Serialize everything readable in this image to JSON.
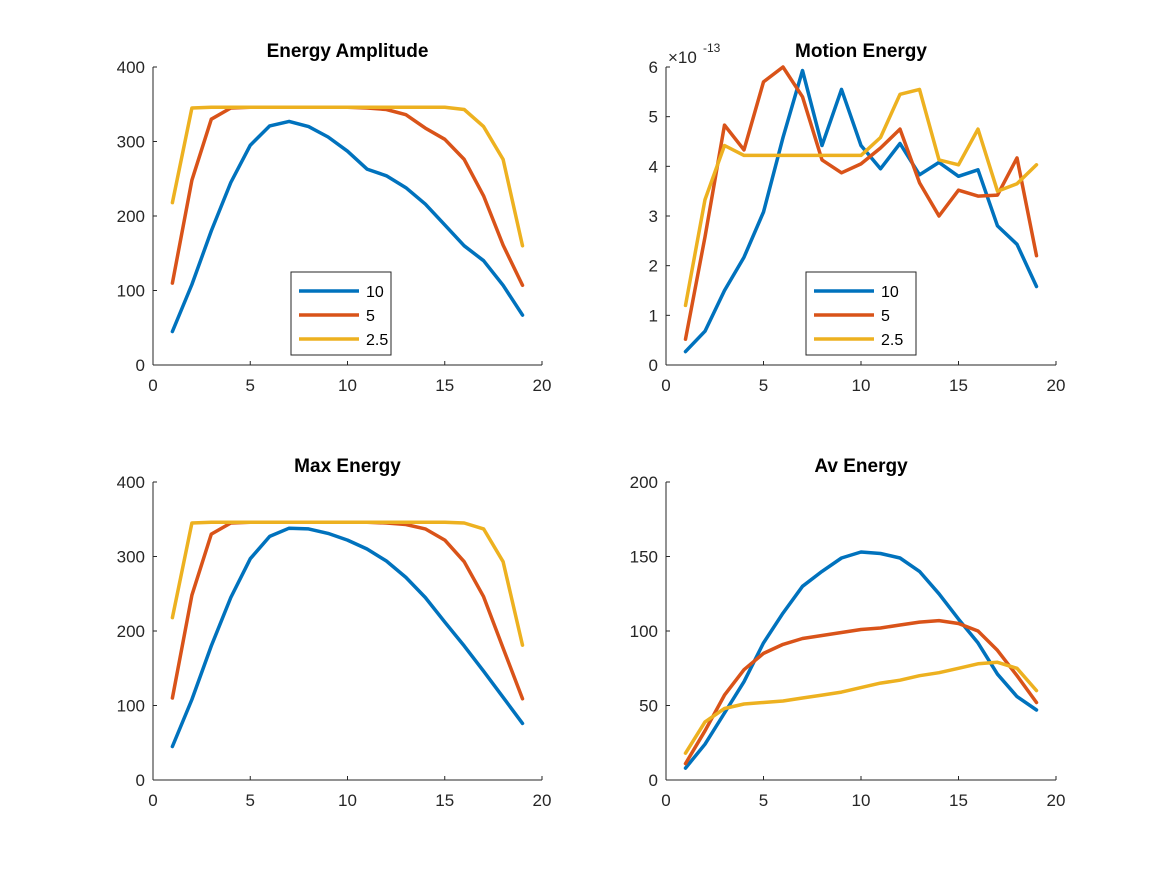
{
  "chart_data": [
    {
      "type": "line",
      "title": "Energy Amplitude",
      "xlim": [
        0,
        20
      ],
      "ylim": [
        0,
        400
      ],
      "xticks": [
        "0",
        "5",
        "10",
        "15",
        "20"
      ],
      "yticks": [
        "0",
        "100",
        "200",
        "300",
        "400"
      ],
      "legend": "inside-bottom-center",
      "series": [
        {
          "name": "10",
          "color": "#0072BD",
          "x": [
            1,
            2,
            3,
            4,
            5,
            6,
            7,
            8,
            9,
            10,
            11,
            12,
            13,
            14,
            15,
            16,
            17,
            18,
            19
          ],
          "values": [
            45,
            108,
            180,
            245,
            295,
            321,
            327,
            320,
            306,
            287,
            263,
            254,
            238,
            216,
            188,
            160,
            140,
            107,
            67
          ]
        },
        {
          "name": "5",
          "color": "#D95319",
          "x": [
            1,
            2,
            3,
            4,
            5,
            6,
            7,
            8,
            9,
            10,
            11,
            12,
            13,
            14,
            15,
            16,
            17,
            18,
            19
          ],
          "values": [
            110,
            248,
            330,
            345,
            346,
            346,
            346,
            346,
            346,
            346,
            345,
            343,
            336,
            318,
            303,
            276,
            227,
            161,
            107
          ]
        },
        {
          "name": "2.5",
          "color": "#EDB120",
          "x": [
            1,
            2,
            3,
            4,
            5,
            6,
            7,
            8,
            9,
            10,
            11,
            12,
            13,
            14,
            15,
            16,
            17,
            18,
            19
          ],
          "values": [
            218,
            345,
            346,
            346,
            346,
            346,
            346,
            346,
            346,
            346,
            346,
            346,
            346,
            346,
            346,
            343,
            320,
            276,
            160
          ]
        }
      ]
    },
    {
      "type": "line",
      "title": "Motion Energy",
      "xlim": [
        0,
        20
      ],
      "ylim": [
        0,
        6
      ],
      "xticks": [
        "0",
        "5",
        "10",
        "15",
        "20"
      ],
      "yticks": [
        "0",
        "1",
        "2",
        "3",
        "4",
        "5",
        "6"
      ],
      "exponent_base": "×10",
      "exponent_power": "-13",
      "legend": "inside-bottom-center",
      "series": [
        {
          "name": "10",
          "color": "#0072BD",
          "x": [
            1,
            2,
            3,
            4,
            5,
            6,
            7,
            8,
            9,
            10,
            11,
            12,
            13,
            14,
            15,
            16,
            17,
            18,
            19
          ],
          "values": [
            0.27,
            0.68,
            1.5,
            2.17,
            3.08,
            4.58,
            5.93,
            4.42,
            5.55,
            4.42,
            3.95,
            4.46,
            3.83,
            4.08,
            3.8,
            3.93,
            2.8,
            2.43,
            1.58
          ]
        },
        {
          "name": "5",
          "color": "#D95319",
          "x": [
            1,
            2,
            3,
            4,
            5,
            6,
            7,
            8,
            9,
            10,
            11,
            12,
            13,
            14,
            15,
            16,
            17,
            18,
            19
          ],
          "values": [
            0.52,
            2.58,
            4.83,
            4.33,
            5.7,
            6.0,
            5.4,
            4.13,
            3.87,
            4.05,
            4.37,
            4.75,
            3.67,
            3.0,
            3.52,
            3.4,
            3.42,
            4.17,
            2.2
          ]
        },
        {
          "name": "2.5",
          "color": "#EDB120",
          "x": [
            1,
            2,
            3,
            4,
            5,
            6,
            7,
            8,
            9,
            10,
            11,
            12,
            13,
            14,
            15,
            16,
            17,
            18,
            19
          ],
          "values": [
            1.2,
            3.33,
            4.42,
            4.22,
            4.22,
            4.22,
            4.22,
            4.22,
            4.22,
            4.22,
            4.58,
            5.45,
            5.55,
            4.13,
            4.03,
            4.75,
            3.5,
            3.65,
            4.03
          ]
        }
      ]
    },
    {
      "type": "line",
      "title": "Max Energy",
      "xlim": [
        0,
        20
      ],
      "ylim": [
        0,
        400
      ],
      "xticks": [
        "0",
        "5",
        "10",
        "15",
        "20"
      ],
      "yticks": [
        "0",
        "100",
        "200",
        "300",
        "400"
      ],
      "series": [
        {
          "name": "10",
          "color": "#0072BD",
          "x": [
            1,
            2,
            3,
            4,
            5,
            6,
            7,
            8,
            9,
            10,
            11,
            12,
            13,
            14,
            15,
            16,
            17,
            18,
            19
          ],
          "values": [
            45,
            108,
            180,
            245,
            297,
            327,
            338,
            337,
            331,
            322,
            310,
            294,
            272,
            245,
            212,
            180,
            146,
            111,
            76
          ]
        },
        {
          "name": "5",
          "color": "#D95319",
          "x": [
            1,
            2,
            3,
            4,
            5,
            6,
            7,
            8,
            9,
            10,
            11,
            12,
            13,
            14,
            15,
            16,
            17,
            18,
            19
          ],
          "values": [
            110,
            248,
            330,
            345,
            346,
            346,
            346,
            346,
            346,
            346,
            346,
            345,
            343,
            337,
            322,
            293,
            246,
            177,
            109
          ]
        },
        {
          "name": "2.5",
          "color": "#EDB120",
          "x": [
            1,
            2,
            3,
            4,
            5,
            6,
            7,
            8,
            9,
            10,
            11,
            12,
            13,
            14,
            15,
            16,
            17,
            18,
            19
          ],
          "values": [
            218,
            345,
            346,
            346,
            346,
            346,
            346,
            346,
            346,
            346,
            346,
            346,
            346,
            346,
            346,
            345,
            337,
            293,
            181
          ]
        }
      ]
    },
    {
      "type": "line",
      "title": "Av Energy",
      "xlim": [
        0,
        20
      ],
      "ylim": [
        0,
        200
      ],
      "xticks": [
        "0",
        "5",
        "10",
        "15",
        "20"
      ],
      "yticks": [
        "0",
        "50",
        "100",
        "150",
        "200"
      ],
      "series": [
        {
          "name": "10",
          "color": "#0072BD",
          "x": [
            1,
            2,
            3,
            4,
            5,
            6,
            7,
            8,
            9,
            10,
            11,
            12,
            13,
            14,
            15,
            16,
            17,
            18,
            19
          ],
          "values": [
            8,
            24,
            45,
            66,
            92,
            112,
            130,
            140,
            149,
            153,
            152,
            149,
            140,
            125,
            108,
            92,
            71,
            56,
            47
          ]
        },
        {
          "name": "5",
          "color": "#D95319",
          "x": [
            1,
            2,
            3,
            4,
            5,
            6,
            7,
            8,
            9,
            10,
            11,
            12,
            13,
            14,
            15,
            16,
            17,
            18,
            19
          ],
          "values": [
            11,
            33,
            57,
            74,
            85,
            91,
            95,
            97,
            99,
            101,
            102,
            104,
            106,
            107,
            105,
            100,
            87,
            70,
            52
          ]
        },
        {
          "name": "2.5",
          "color": "#EDB120",
          "x": [
            1,
            2,
            3,
            4,
            5,
            6,
            7,
            8,
            9,
            10,
            11,
            12,
            13,
            14,
            15,
            16,
            17,
            18,
            19
          ],
          "values": [
            18,
            39,
            48,
            51,
            52,
            53,
            55,
            57,
            59,
            62,
            65,
            67,
            70,
            72,
            75,
            78,
            79,
            75,
            60
          ]
        }
      ]
    }
  ]
}
